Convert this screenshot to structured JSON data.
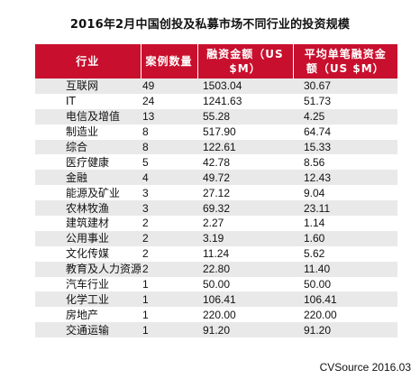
{
  "chart_data": {
    "type": "table",
    "title": "2016年2月中国创投及私募市场不同行业的投资规模",
    "columns": [
      "行业",
      "案例数量",
      "融资金额（US $M）",
      "平均单笔融资金额（US $M）"
    ],
    "rows": [
      {
        "industry": "互联网",
        "cases": "49",
        "amount": "1503.04",
        "average": "30.67"
      },
      {
        "industry": "IT",
        "cases": "24",
        "amount": "1241.63",
        "average": "51.73"
      },
      {
        "industry": "电信及增值",
        "cases": "13",
        "amount": "55.28",
        "average": "4.25"
      },
      {
        "industry": "制造业",
        "cases": "8",
        "amount": "517.90",
        "average": "64.74"
      },
      {
        "industry": "综合",
        "cases": "8",
        "amount": "122.61",
        "average": "15.33"
      },
      {
        "industry": "医疗健康",
        "cases": "5",
        "amount": "42.78",
        "average": "8.56"
      },
      {
        "industry": "金融",
        "cases": "4",
        "amount": "49.72",
        "average": "12.43"
      },
      {
        "industry": "能源及矿业",
        "cases": "3",
        "amount": "27.12",
        "average": "9.04"
      },
      {
        "industry": "农林牧渔",
        "cases": "3",
        "amount": "69.32",
        "average": "23.11"
      },
      {
        "industry": "建筑建材",
        "cases": "2",
        "amount": "2.27",
        "average": "1.14"
      },
      {
        "industry": "公用事业",
        "cases": "2",
        "amount": "3.19",
        "average": "1.60"
      },
      {
        "industry": "文化传媒",
        "cases": "2",
        "amount": "11.24",
        "average": "5.62"
      },
      {
        "industry": "教育及人力资源",
        "cases": "2",
        "amount": "22.80",
        "average": "11.40"
      },
      {
        "industry": "汽车行业",
        "cases": "1",
        "amount": "50.00",
        "average": "50.00"
      },
      {
        "industry": "化学工业",
        "cases": "1",
        "amount": "106.41",
        "average": "106.41"
      },
      {
        "industry": "房地产",
        "cases": "1",
        "amount": "220.00",
        "average": "220.00"
      },
      {
        "industry": "交通运输",
        "cases": "1",
        "amount": "91.20",
        "average": "91.20"
      }
    ]
  },
  "header": {
    "industry": "行业",
    "cases": "案例数量",
    "amount_line1": "融资金额（US",
    "amount_line2": "$M）",
    "average_line1": "平均单笔融资金",
    "average_line2": "额（US $M）"
  },
  "source": "CVSource 2016.03",
  "colors": {
    "header_bg": "#c8102e",
    "row_alt": "#e9e9e9"
  }
}
